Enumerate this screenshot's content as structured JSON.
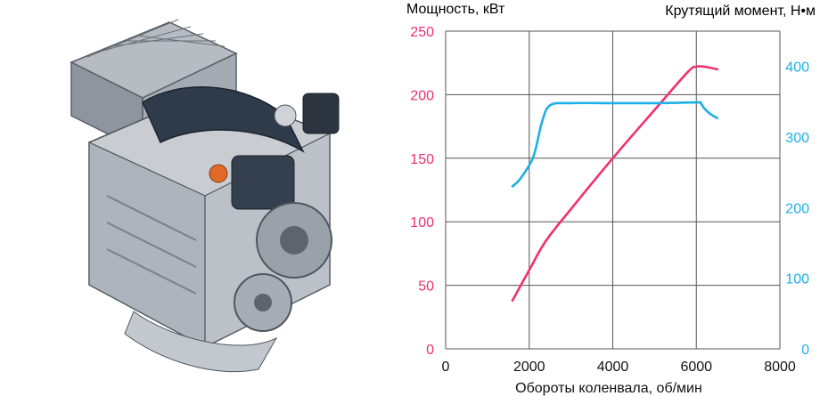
{
  "colors": {
    "power": "#f0306f",
    "torque": "#1cb0e4",
    "grid": "#555555",
    "axis_text": "#111111"
  },
  "illustration": {
    "icon": "engine-cutaway-illustration"
  },
  "chart_data": {
    "type": "line",
    "left_axis_title": "Мощность, кВт",
    "right_axis_title": "Крутящий момент, Н•м",
    "xlabel": "Обороты коленвала, об/мин",
    "xlim": [
      0,
      8000
    ],
    "x_ticks": [
      "0",
      "2000",
      "4000",
      "6000",
      "8000"
    ],
    "ylim_left": [
      0,
      250
    ],
    "y_left_ticks": [
      "0",
      "50",
      "100",
      "150",
      "200",
      "250"
    ],
    "ylim_right": [
      0,
      450
    ],
    "y_right_ticks": [
      "0",
      "100",
      "200",
      "300",
      "400"
    ],
    "grid": true,
    "series": [
      {
        "axis": "left",
        "x": [
          1600,
          2000,
          2400,
          3000,
          4000,
          5000,
          5800,
          6000,
          6200,
          6500
        ],
        "y": [
          38,
          62,
          85,
          110,
          150,
          188,
          218,
          222,
          222,
          220
        ]
      },
      {
        "axis": "right",
        "x": [
          1600,
          1800,
          2100,
          2300,
          2500,
          3000,
          4000,
          5000,
          6000,
          6100,
          6200,
          6350,
          6500
        ],
        "y": [
          230,
          242,
          272,
          320,
          345,
          348,
          348,
          348,
          349,
          348,
          340,
          332,
          327
        ]
      }
    ]
  }
}
